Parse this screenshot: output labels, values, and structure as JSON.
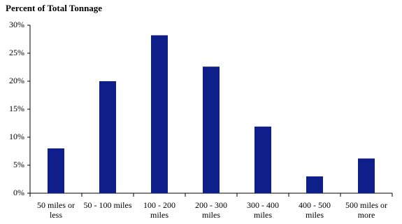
{
  "chart_data": {
    "type": "bar",
    "title": "Percent of Total Tonnage",
    "categories": [
      "50 miles or less",
      "50 - 100 miles",
      "100 - 200 miles",
      "200 - 300 miles",
      "300 - 400 miles",
      "400 - 500 miles",
      "500 miles or more"
    ],
    "values": [
      8,
      20,
      28.2,
      22.6,
      11.9,
      3,
      6.2
    ],
    "color": "#0f1f8a",
    "ylim": [
      0,
      30
    ],
    "yticks": [
      {
        "value": 0,
        "label": "0%"
      },
      {
        "value": 5,
        "label": "5%"
      },
      {
        "value": 10,
        "label": "10%"
      },
      {
        "value": 15,
        "label": "15%"
      },
      {
        "value": 20,
        "label": "20%"
      },
      {
        "value": 25,
        "label": "25%"
      },
      {
        "value": 30,
        "label": "30%"
      }
    ],
    "grid": false
  }
}
